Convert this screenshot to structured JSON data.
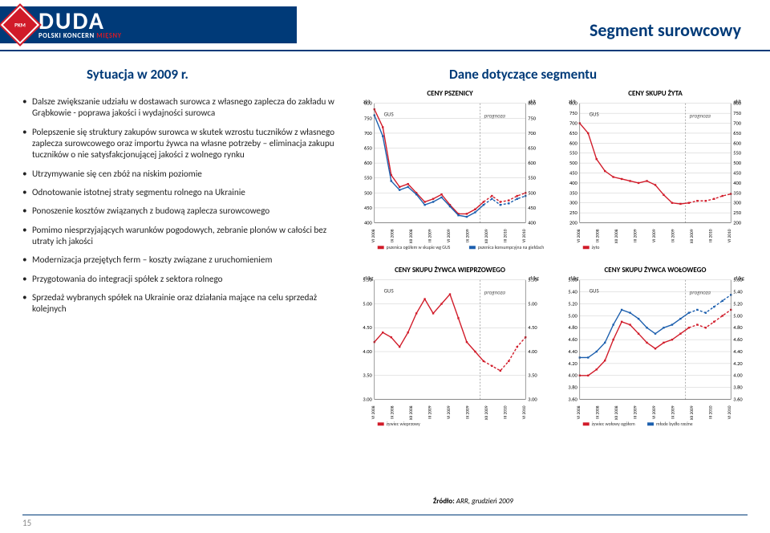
{
  "header": {
    "logo_text": "DUDA",
    "logo_sub_white": "POLSKI KONCERN ",
    "logo_sub_red": "MIĘSNY"
  },
  "titles": {
    "segment": "Segment surowcowy",
    "left": "Sytuacja w 2009 r.",
    "right": "Dane dotyczące segmentu"
  },
  "bullets": [
    "Dalsze zwiększanie udziału w dostawach surowca z własnego zaplecza do zakładu w Grąbkowie - poprawa jakości i wydajności surowca",
    "Polepszenie się struktury zakupów surowca w skutek wzrostu tuczników z własnego zaplecza surowcowego oraz importu żywca na własne potrzeby – eliminacja zakupu tuczników o nie satysfakcjonującej jakości z wolnego rynku",
    "Utrzymywanie się cen zbóż na niskim poziomie",
    "Odnotowanie istotnej straty segmentu rolnego na Ukrainie",
    "Ponoszenie kosztów związanych z budową zaplecza surowcowego",
    "Pomimo niesprzyjających warunków pogodowych, zebranie plonów w całości bez utraty ich jakości",
    "Modernizacja przejętych ferm – koszty związane z uruchomieniem",
    "Przygotowania do integracji spółek z sektora rolnego",
    "Sprzedaż wybranych spółek na Ukrainie oraz działania mające na celu sprzedaż kolejnych"
  ],
  "charts": {
    "c1": {
      "title": "CENY PSZENICY",
      "y_left_unit": "zł/t",
      "y_right_unit": "zł/t",
      "y_left_min": 400,
      "y_left_max": 800,
      "y_left_step": 50,
      "y_right_min": 400,
      "y_right_max": 800,
      "y_right_step": 50,
      "x_labels": [
        "VI 2008",
        "IX 2008",
        "XII 2008",
        "III 2009",
        "VI 2009",
        "IX 2009",
        "XII 2009",
        "III 2010",
        "VI 2010"
      ],
      "annot": "GUS",
      "prognoza": "prognoza",
      "series": [
        {
          "name": "pszenica ogółem w skupie wg GUS",
          "color": "#d11b29",
          "dash": "none",
          "data": [
            780,
            720,
            560,
            520,
            530,
            500,
            470,
            480,
            495,
            460,
            430,
            430,
            445,
            470,
            490,
            470,
            475,
            490,
            500
          ]
        },
        {
          "name": "pszenica konsumpcyjna na giełdach",
          "color": "#1c5fae",
          "dash": "none",
          "data": [
            760,
            690,
            540,
            510,
            520,
            495,
            460,
            470,
            485,
            455,
            425,
            420,
            435,
            460,
            480,
            460,
            465,
            480,
            490
          ]
        }
      ],
      "forecast_x": 0.7
    },
    "c2": {
      "title": "CENY SKUPU ŻYTA",
      "y_left_unit": "zł/t",
      "y_right_unit": "zł/t",
      "y_left_min": 200,
      "y_left_max": 800,
      "y_left_step": 50,
      "y_right_min": 200,
      "y_right_max": 800,
      "y_right_step": 50,
      "x_labels": [
        "VI 2008",
        "IX 2008",
        "XII 2008",
        "III 2009",
        "VI 2009",
        "IX 2009",
        "XII 2009",
        "III 2010",
        "VI 2010"
      ],
      "annot": "GUS",
      "prognoza": "prognoza",
      "series": [
        {
          "name": "żyto",
          "color": "#d11b29",
          "dash": "none",
          "data": [
            700,
            650,
            520,
            460,
            430,
            420,
            410,
            400,
            410,
            390,
            340,
            300,
            295,
            300,
            310,
            310,
            320,
            335,
            345
          ]
        }
      ],
      "forecast_x": 0.7
    },
    "c3": {
      "title": "CENY SKUPU ŻYWCA WIEPRZOWEGO",
      "y_left_unit": "zł/kg",
      "y_right_unit": "zł/kg",
      "y_left_min": 3.0,
      "y_left_max": 5.5,
      "y_left_step": 0.5,
      "y_right_min": 3.0,
      "y_right_max": 5.5,
      "y_right_step": 0.5,
      "x_labels": [
        "VI 2008",
        "IX 2008",
        "XII 2008",
        "III 2009",
        "VI 2009",
        "IX 2009",
        "XII 2009",
        "III 2010",
        "VI 2010"
      ],
      "annot": "GUS",
      "prognoza": "prognoza",
      "series": [
        {
          "name": "żywiec wieprzowy",
          "color": "#d11b29",
          "dash": "none",
          "data": [
            4.2,
            4.4,
            4.3,
            4.1,
            4.4,
            4.8,
            5.1,
            4.8,
            5.0,
            5.2,
            4.7,
            4.2,
            4.0,
            3.8,
            3.7,
            3.6,
            3.8,
            4.1,
            4.3
          ]
        }
      ],
      "forecast_x": 0.7
    },
    "c4": {
      "title": "CENY SKUPU ŻYWCA WOŁOWEGO",
      "y_left_unit": "zł/kg",
      "y_right_unit": "zł/kg",
      "y_left_min": 3.6,
      "y_left_max": 5.6,
      "y_left_step": 0.2,
      "y_right_min": 3.6,
      "y_right_max": 5.6,
      "y_right_step": 0.2,
      "x_labels": [
        "VI 2008",
        "IX 2008",
        "XII 2008",
        "III 2009",
        "VI 2009",
        "IX 2009",
        "XII 2009",
        "III 2010",
        "VI 2010"
      ],
      "annot": "GUS",
      "prognoza": "prognoza",
      "series": [
        {
          "name": "żywiec wołowy ogółem",
          "color": "#d11b29",
          "dash": "none",
          "data": [
            4.0,
            4.0,
            4.1,
            4.25,
            4.6,
            4.9,
            4.85,
            4.7,
            4.55,
            4.45,
            4.55,
            4.6,
            4.7,
            4.8,
            4.85,
            4.8,
            4.9,
            5.0,
            5.1
          ]
        },
        {
          "name": "młode bydło rzeźne",
          "color": "#1c5fae",
          "dash": "none",
          "data": [
            4.3,
            4.3,
            4.4,
            4.55,
            4.85,
            5.1,
            5.05,
            4.95,
            4.8,
            4.7,
            4.8,
            4.85,
            4.95,
            5.05,
            5.1,
            5.05,
            5.15,
            5.25,
            5.35
          ]
        }
      ],
      "forecast_x": 0.7
    }
  },
  "source_label": "Źródło:",
  "source_text": " ARR, grudzień 2009",
  "page": "15",
  "colors": {
    "brand_blue": "#003a78",
    "red": "#d11b29",
    "grid": "#bdbdbd",
    "axis": "#555"
  }
}
